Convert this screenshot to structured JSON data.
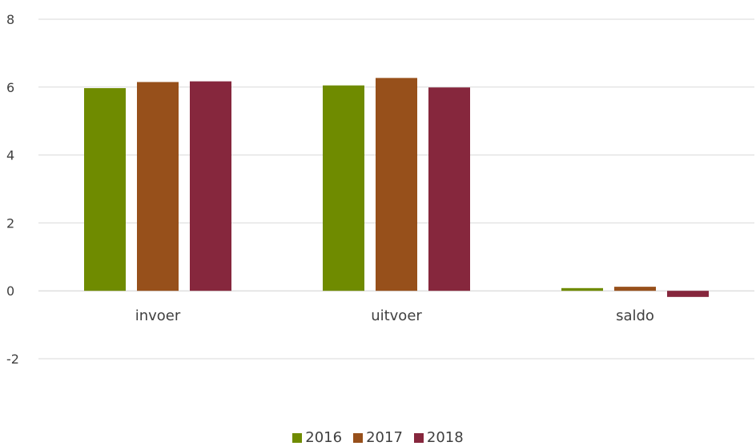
{
  "chart_data": {
    "type": "bar",
    "categories": [
      "invoer",
      "uitvoer",
      "saldo"
    ],
    "series": [
      {
        "name": "2016",
        "color": "#6f8b00",
        "values": [
          5.97,
          6.05,
          0.08
        ]
      },
      {
        "name": "2017",
        "color": "#97501b",
        "values": [
          6.15,
          6.27,
          0.12
        ]
      },
      {
        "name": "2018",
        "color": "#86273d",
        "values": [
          6.17,
          5.99,
          -0.18
        ]
      }
    ],
    "ylim": [
      -2,
      8
    ],
    "yticks": [
      "8",
      "6",
      "4",
      "2",
      "0",
      "-2"
    ],
    "grid": true,
    "legend_position": "bottom"
  }
}
